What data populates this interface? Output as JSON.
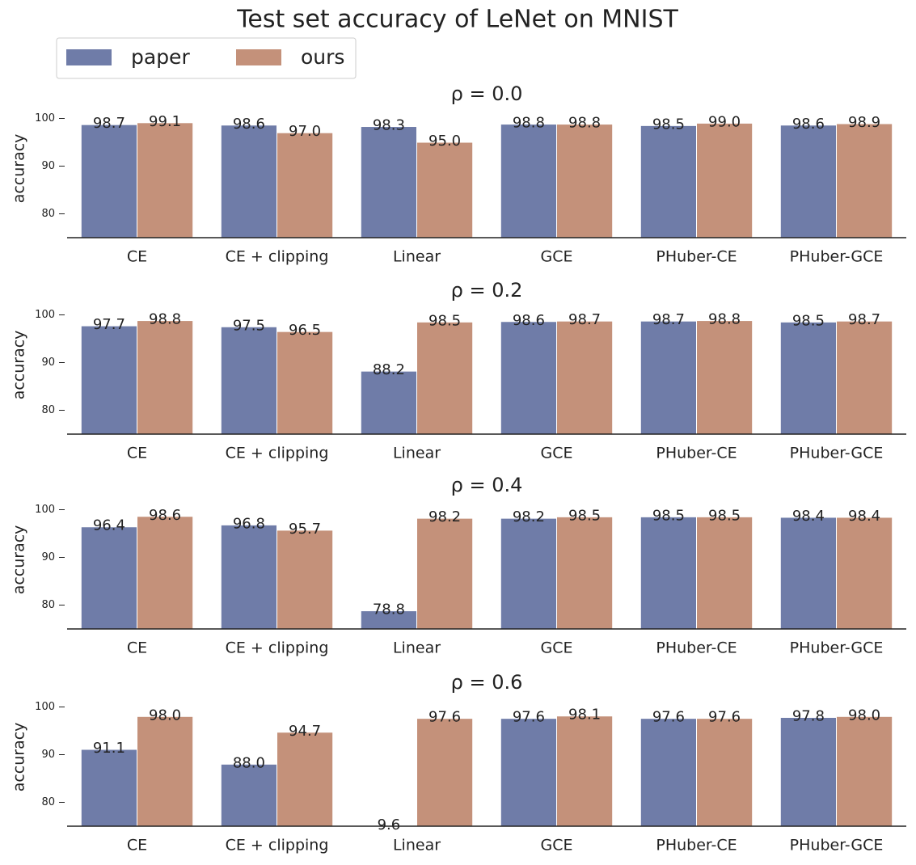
{
  "title": "Test set accuracy of LeNet on MNIST",
  "chart_data": [
    {
      "type": "bar",
      "title": "ρ = 0.0",
      "ylabel": "accuracy",
      "categories": [
        "CE",
        "CE + clipping",
        "Linear",
        "GCE",
        "PHuber-CE",
        "PHuber-GCE"
      ],
      "series": [
        {
          "name": "paper",
          "color": "#6f7ca8",
          "values": [
            98.7,
            98.6,
            98.3,
            98.8,
            98.5,
            98.6
          ],
          "value_labels": [
            "98.7",
            "98.6",
            "98.3",
            "98.8",
            "98.5",
            "98.6"
          ]
        },
        {
          "name": "ours",
          "color": "#c4917a",
          "values": [
            99.1,
            97.0,
            95.0,
            98.8,
            99.0,
            98.9
          ],
          "value_labels": [
            "99.1",
            "97.0",
            "95.0",
            "98.8",
            "99.0",
            "98.9"
          ]
        }
      ],
      "ylim": [
        75,
        104
      ],
      "yticks": [
        80,
        90,
        100
      ]
    },
    {
      "type": "bar",
      "title": "ρ = 0.2",
      "ylabel": "accuracy",
      "categories": [
        "CE",
        "CE + clipping",
        "Linear",
        "GCE",
        "PHuber-CE",
        "PHuber-GCE"
      ],
      "series": [
        {
          "name": "paper",
          "color": "#6f7ca8",
          "values": [
            97.7,
            97.5,
            88.2,
            98.6,
            98.7,
            98.5
          ],
          "value_labels": [
            "97.7",
            "97.5",
            "88.2",
            "98.6",
            "98.7",
            "98.5"
          ]
        },
        {
          "name": "ours",
          "color": "#c4917a",
          "values": [
            98.8,
            96.5,
            98.5,
            98.7,
            98.8,
            98.7
          ],
          "value_labels": [
            "98.8",
            "96.5",
            "98.5",
            "98.7",
            "98.8",
            "98.7"
          ]
        }
      ],
      "ylim": [
        75,
        104
      ],
      "yticks": [
        80,
        90,
        100
      ]
    },
    {
      "type": "bar",
      "title": "ρ = 0.4",
      "ylabel": "accuracy",
      "categories": [
        "CE",
        "CE + clipping",
        "Linear",
        "GCE",
        "PHuber-CE",
        "PHuber-GCE"
      ],
      "series": [
        {
          "name": "paper",
          "color": "#6f7ca8",
          "values": [
            96.4,
            96.8,
            78.8,
            98.2,
            98.5,
            98.4
          ],
          "value_labels": [
            "96.4",
            "96.8",
            "78.8",
            "98.2",
            "98.5",
            "98.4"
          ]
        },
        {
          "name": "ours",
          "color": "#c4917a",
          "values": [
            98.6,
            95.7,
            98.2,
            98.5,
            98.5,
            98.4
          ],
          "value_labels": [
            "98.6",
            "95.7",
            "98.2",
            "98.5",
            "98.5",
            "98.4"
          ]
        }
      ],
      "ylim": [
        75,
        104
      ],
      "yticks": [
        80,
        90,
        100
      ]
    },
    {
      "type": "bar",
      "title": "ρ = 0.6",
      "ylabel": "accuracy",
      "categories": [
        "CE",
        "CE + clipping",
        "Linear",
        "GCE",
        "PHuber-CE",
        "PHuber-GCE"
      ],
      "series": [
        {
          "name": "paper",
          "color": "#6f7ca8",
          "values": [
            91.1,
            88.0,
            9.6,
            97.6,
            97.6,
            97.8
          ],
          "value_labels": [
            "91.1",
            "88.0",
            "9.6",
            "97.6",
            "97.6",
            "97.8"
          ]
        },
        {
          "name": "ours",
          "color": "#c4917a",
          "values": [
            98.0,
            94.7,
            97.6,
            98.1,
            97.6,
            98.0
          ],
          "value_labels": [
            "98.0",
            "94.7",
            "97.6",
            "98.1",
            "97.6",
            "98.0"
          ]
        }
      ],
      "ylim": [
        75,
        104
      ],
      "yticks": [
        80,
        90,
        100
      ]
    }
  ]
}
